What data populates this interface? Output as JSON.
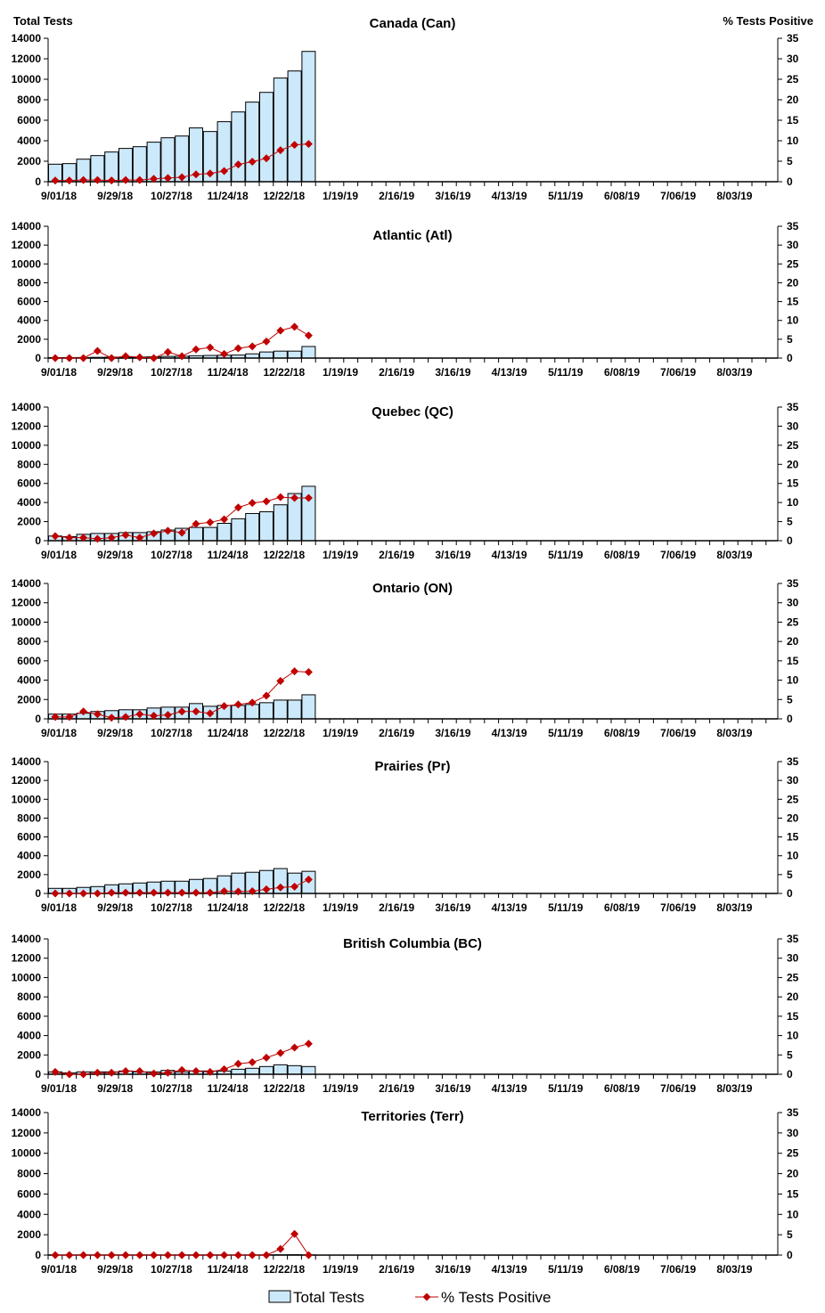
{
  "colors": {
    "bar_fill": "#cce9fb",
    "bar_stroke": "#000000",
    "line": "#c00000"
  },
  "legend": {
    "bar_label": "Total Tests",
    "line_label": "% Tests Positive",
    "placement": "bottom"
  },
  "axis_titles": {
    "left": "Total Tests",
    "right": "% Tests Positive"
  },
  "x_tick_labels": [
    "9/01/18",
    "9/29/18",
    "10/27/18",
    "11/24/18",
    "12/22/18",
    "1/19/19",
    "2/16/19",
    "3/16/19",
    "4/13/19",
    "5/11/19",
    "6/08/19",
    "7/06/19",
    "8/03/19"
  ],
  "y_left_ticks": [
    "0",
    "2000",
    "4000",
    "6000",
    "8000",
    "10000",
    "12000",
    "14000"
  ],
  "y_right_ticks": [
    "0",
    "5",
    "10",
    "15",
    "20",
    "25",
    "30",
    "35"
  ],
  "chart_data": [
    {
      "type": "bar+line",
      "title": "Canada (Can)",
      "ylim_left": [
        0,
        14000
      ],
      "ylim_right": [
        0,
        35
      ],
      "x_interval": "weekly",
      "series": [
        {
          "name": "Total Tests",
          "values": [
            1710,
            1770,
            2200,
            2550,
            2900,
            3250,
            3420,
            3860,
            4290,
            4460,
            5250,
            4900,
            5860,
            6810,
            7770,
            8720,
            10120,
            10810,
            12720
          ]
        },
        {
          "name": "% Tests Positive",
          "values": [
            0.3,
            0.3,
            0.4,
            0.4,
            0.3,
            0.4,
            0.4,
            0.7,
            0.9,
            1.1,
            1.8,
            2.0,
            2.6,
            4.2,
            4.9,
            5.7,
            7.7,
            9.0,
            9.2
          ]
        }
      ]
    },
    {
      "type": "bar+line",
      "title": "Atlantic (Atl)",
      "ylim_left": [
        0,
        14000
      ],
      "ylim_right": [
        0,
        35
      ],
      "x_interval": "weekly",
      "series": [
        {
          "name": "Total Tests",
          "values": [
            50,
            50,
            60,
            80,
            100,
            100,
            110,
            130,
            180,
            200,
            250,
            280,
            300,
            320,
            450,
            650,
            740,
            740,
            1230
          ]
        },
        {
          "name": "% Tests Positive",
          "values": [
            0,
            0,
            0,
            1.9,
            0,
            0.5,
            0.2,
            0,
            1.6,
            0.5,
            2.3,
            2.8,
            1.1,
            2.6,
            3.1,
            4.4,
            7.3,
            8.3,
            6.0
          ]
        }
      ]
    },
    {
      "type": "bar+line",
      "title": "Quebec (QC)",
      "ylim_left": [
        0,
        14000
      ],
      "ylim_right": [
        0,
        35
      ],
      "x_interval": "weekly",
      "series": [
        {
          "name": "Total Tests",
          "values": [
            490,
            420,
            670,
            760,
            760,
            850,
            850,
            940,
            1120,
            1300,
            1390,
            1390,
            1820,
            2300,
            2850,
            3030,
            3760,
            4940,
            5700
          ]
        },
        {
          "name": "% Tests Positive",
          "values": [
            1.2,
            0.8,
            0.8,
            0.5,
            0.8,
            1.5,
            0.8,
            1.9,
            2.6,
            2.1,
            4.4,
            4.8,
            5.6,
            8.7,
            9.9,
            10.3,
            11.4,
            11.2,
            11.2
          ]
        }
      ]
    },
    {
      "type": "bar+line",
      "title": "Ontario (ON)",
      "ylim_left": [
        0,
        14000
      ],
      "ylim_right": [
        0,
        35
      ],
      "x_interval": "weekly",
      "series": [
        {
          "name": "Total Tests",
          "values": [
            490,
            490,
            580,
            760,
            850,
            940,
            940,
            1120,
            1210,
            1210,
            1580,
            1300,
            1390,
            1390,
            1490,
            1670,
            1940,
            1940,
            2490
          ]
        },
        {
          "name": "% Tests Positive",
          "values": [
            0.5,
            0.5,
            1.9,
            1.2,
            0.3,
            0.5,
            1.2,
            0.8,
            1.0,
            1.9,
            1.9,
            1.4,
            3.3,
            3.7,
            4.2,
            6.0,
            9.8,
            12.3,
            12.1
          ]
        }
      ]
    },
    {
      "type": "bar+line",
      "title": "Prairies (Pr)",
      "ylim_left": [
        0,
        14000
      ],
      "ylim_right": [
        0,
        35
      ],
      "x_interval": "weekly",
      "series": [
        {
          "name": "Total Tests",
          "values": [
            540,
            540,
            640,
            730,
            920,
            1020,
            1110,
            1210,
            1300,
            1300,
            1490,
            1590,
            1870,
            2160,
            2250,
            2440,
            2640,
            2160,
            2350
          ]
        },
        {
          "name": "% Tests Positive",
          "values": [
            0,
            0,
            0,
            0,
            0.2,
            0.2,
            0.2,
            0.2,
            0.2,
            0.2,
            0.2,
            0.2,
            0.6,
            0.5,
            0.6,
            1.1,
            1.6,
            1.8,
            3.7
          ]
        }
      ]
    },
    {
      "type": "bar+line",
      "title": "British Columbia (BC)",
      "ylim_left": [
        0,
        14000
      ],
      "ylim_right": [
        0,
        35
      ],
      "x_interval": "weekly",
      "series": [
        {
          "name": "Total Tests",
          "values": [
            250,
            150,
            250,
            250,
            250,
            340,
            250,
            250,
            400,
            250,
            340,
            340,
            340,
            520,
            620,
            800,
            980,
            890,
            800
          ]
        },
        {
          "name": "% Tests Positive",
          "values": [
            0.6,
            0,
            0,
            0.4,
            0.4,
            0.8,
            0.8,
            0.2,
            0.4,
            1.1,
            0.8,
            0.6,
            1.3,
            2.7,
            3.1,
            4.3,
            5.5,
            6.9,
            7.9
          ]
        }
      ]
    },
    {
      "type": "bar+line",
      "title": "Territories (Terr)",
      "ylim_left": [
        0,
        14000
      ],
      "ylim_right": [
        0,
        35
      ],
      "x_interval": "weekly",
      "series": [
        {
          "name": "Total Tests",
          "values": [
            10,
            10,
            10,
            10,
            10,
            10,
            10,
            10,
            10,
            10,
            10,
            10,
            10,
            10,
            10,
            20,
            30,
            40,
            20
          ]
        },
        {
          "name": "% Tests Positive",
          "values": [
            0,
            0,
            0,
            0,
            0,
            0,
            0,
            0,
            0,
            0,
            0,
            0,
            0,
            0,
            0,
            0,
            1.5,
            5.2,
            0
          ]
        }
      ]
    }
  ]
}
